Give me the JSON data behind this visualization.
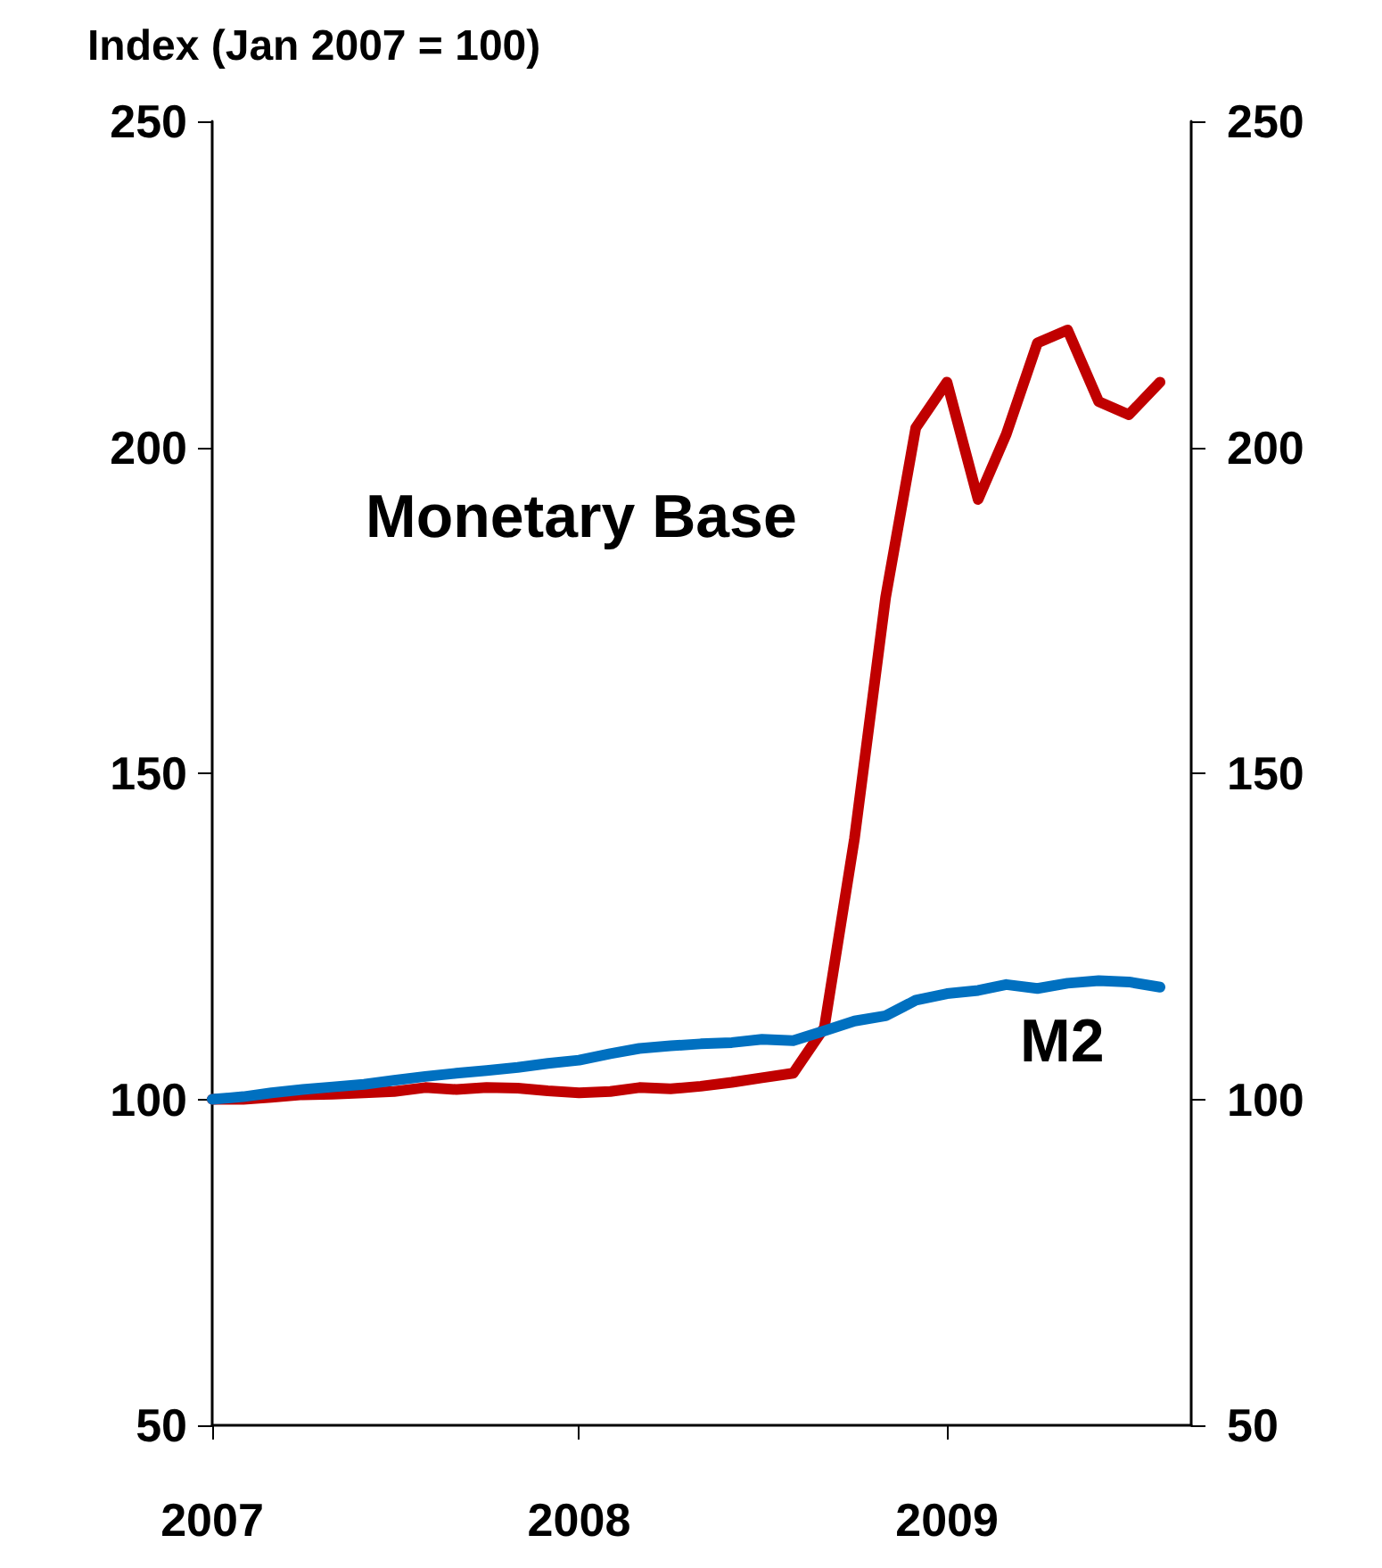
{
  "chart_data": {
    "type": "line",
    "ylabel": "Index (Jan 2007 = 100)",
    "x": [
      "2007-01",
      "2007-02",
      "2007-03",
      "2007-04",
      "2007-05",
      "2007-06",
      "2007-07",
      "2007-08",
      "2007-09",
      "2007-10",
      "2007-11",
      "2007-12",
      "2008-01",
      "2008-02",
      "2008-03",
      "2008-04",
      "2008-05",
      "2008-06",
      "2008-07",
      "2008-08",
      "2008-09",
      "2008-10",
      "2008-11",
      "2008-12",
      "2009-01",
      "2009-02",
      "2009-03",
      "2009-04",
      "2009-05",
      "2009-06",
      "2009-07",
      "2009-08"
    ],
    "series": [
      {
        "name": "Monetary Base",
        "color": "#c00000",
        "values": [
          100,
          100,
          100.3,
          100.7,
          100.8,
          101,
          101.2,
          101.8,
          101.5,
          101.8,
          101.7,
          101.3,
          101,
          101.2,
          101.8,
          101.6,
          102,
          102.6,
          103.3,
          104,
          111,
          140,
          177,
          203,
          210,
          192,
          202,
          216,
          218,
          207,
          205,
          210
        ]
      },
      {
        "name": "M2",
        "color": "#0070c0",
        "values": [
          100,
          100.4,
          101,
          101.5,
          101.9,
          102.3,
          102.9,
          103.5,
          104,
          104.4,
          104.9,
          105.5,
          106,
          107,
          107.8,
          108.2,
          108.5,
          108.7,
          109.2,
          109,
          110.5,
          112,
          112.8,
          115.2,
          116.2,
          116.7,
          117.6,
          117,
          117.8,
          118.2,
          118,
          117.2
        ]
      }
    ],
    "xlim": [
      "2007-01",
      "2009-09"
    ],
    "xticks": [
      "2007",
      "2008",
      "2009"
    ],
    "ylim": [
      50,
      250
    ],
    "yticks": [
      50,
      100,
      150,
      200,
      250
    ],
    "y2lim": [
      50,
      250
    ],
    "y2ticks": [
      50,
      100,
      150,
      200,
      250
    ],
    "grid": false,
    "legend": false,
    "marker": "none",
    "line_style": "solid"
  }
}
